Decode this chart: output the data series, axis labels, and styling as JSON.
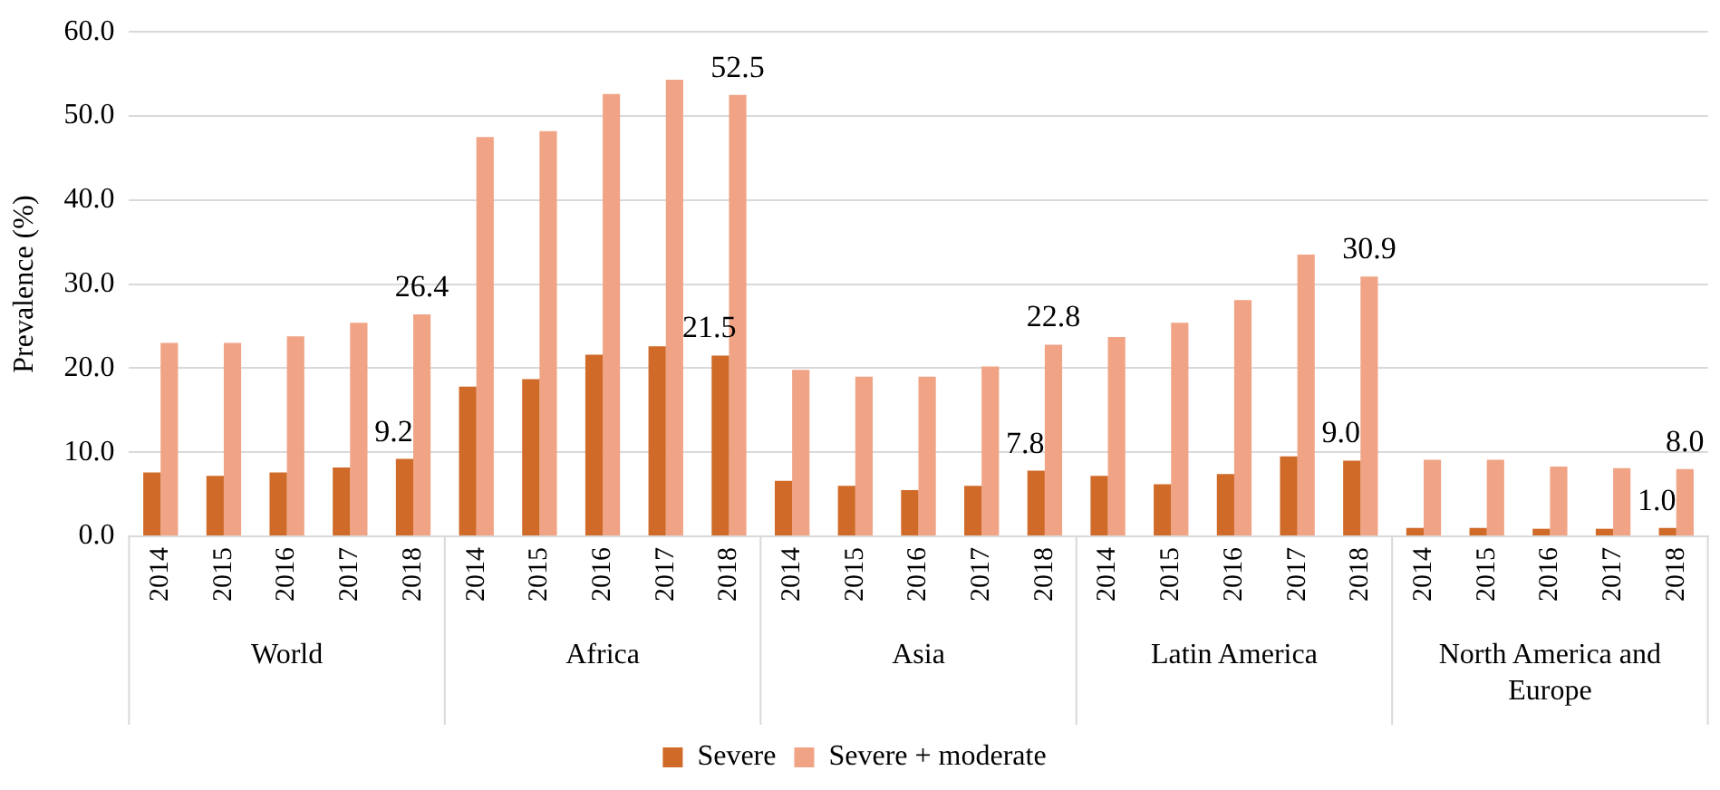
{
  "chart_data": {
    "type": "bar",
    "ylabel": "Prevalence (%)",
    "categories": [
      "2014",
      "2015",
      "2016",
      "2017",
      "2018",
      "2014",
      "2015",
      "2016",
      "2017",
      "2018",
      "2014",
      "2015",
      "2016",
      "2017",
      "2018",
      "2014",
      "2015",
      "2016",
      "2017",
      "2018",
      "2014",
      "2015",
      "2016",
      "2017",
      "2018"
    ],
    "series": [
      {
        "name": "Severe",
        "color": "#d06a28",
        "values": [
          7.6,
          7.2,
          7.6,
          8.2,
          9.2,
          17.8,
          18.7,
          21.6,
          22.6,
          21.5,
          6.6,
          6.0,
          5.5,
          6.0,
          7.8,
          7.2,
          6.2,
          7.4,
          9.5,
          9.0,
          1.0,
          1.0,
          0.9,
          0.9,
          1.0
        ],
        "value_labels": [
          null,
          null,
          null,
          null,
          "9.2",
          null,
          null,
          null,
          null,
          "21.5",
          null,
          null,
          null,
          null,
          "7.8",
          null,
          null,
          null,
          null,
          "9.0",
          null,
          null,
          null,
          null,
          "1.0"
        ]
      },
      {
        "name": "Severe + moderate",
        "color": "#f0a385",
        "values": [
          23.0,
          23.0,
          23.8,
          25.4,
          26.4,
          47.5,
          48.2,
          52.6,
          54.3,
          52.5,
          19.8,
          19.0,
          19.0,
          20.2,
          22.8,
          23.7,
          25.4,
          28.1,
          33.5,
          30.9,
          9.1,
          9.1,
          8.3,
          8.1,
          8.0
        ],
        "value_labels": [
          null,
          null,
          null,
          null,
          "26.4",
          null,
          null,
          null,
          null,
          "52.5",
          null,
          null,
          null,
          null,
          "22.8",
          null,
          null,
          null,
          null,
          "30.9",
          null,
          null,
          null,
          null,
          "8.0"
        ]
      }
    ],
    "annotations": [
      "World",
      "Africa",
      "Asia",
      "Latin America",
      "North America and Europe"
    ],
    "ylim": [
      0,
      60
    ],
    "yticks": [
      {
        "value": 0,
        "label": "0.0"
      },
      {
        "value": 10,
        "label": "10.0"
      },
      {
        "value": 20,
        "label": "20.0"
      },
      {
        "value": 30,
        "label": "30.0"
      },
      {
        "value": 40,
        "label": "40.0"
      },
      {
        "value": 50,
        "label": "50.0"
      },
      {
        "value": 60,
        "label": "60.0"
      }
    ],
    "grid": "y",
    "legend": "bottom"
  }
}
